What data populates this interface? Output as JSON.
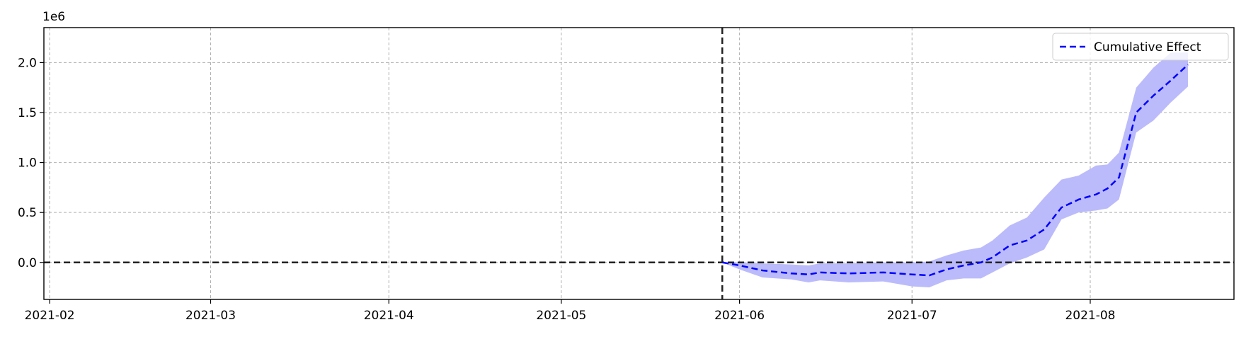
{
  "chart_data": {
    "type": "line",
    "title": "",
    "xlabel": "",
    "ylabel": "",
    "y_offset_label": "1e6",
    "x_axis_type": "date",
    "xlim": [
      "2021-01-31",
      "2021-08-26"
    ],
    "ylim": [
      -0.37,
      2.35
    ],
    "grid": true,
    "legend_position": "top-right",
    "x_ticks": [
      "2021-02-01",
      "2021-03-01",
      "2021-04-01",
      "2021-05-01",
      "2021-06-01",
      "2021-07-01",
      "2021-08-01"
    ],
    "x_tick_labels": [
      "2021-02",
      "2021-03",
      "2021-04",
      "2021-05",
      "2021-06",
      "2021-07",
      "2021-08"
    ],
    "y_ticks": [
      0.0,
      0.5,
      1.0,
      1.5,
      2.0
    ],
    "y_tick_labels": [
      "0.0",
      "0.5",
      "1.0",
      "1.5",
      "2.0"
    ],
    "reference_lines": {
      "intervention_date": "2021-05-29",
      "zero_level": 0.0
    },
    "series": [
      {
        "name": "Cumulative Effect",
        "color": "#0000ff",
        "style": "dashed",
        "x": [
          "2021-05-29",
          "2021-06-01",
          "2021-06-05",
          "2021-06-10",
          "2021-06-13",
          "2021-06-15",
          "2021-06-20",
          "2021-06-26",
          "2021-07-01",
          "2021-07-04",
          "2021-07-07",
          "2021-07-10",
          "2021-07-13",
          "2021-07-15",
          "2021-07-18",
          "2021-07-21",
          "2021-07-24",
          "2021-07-27",
          "2021-07-30",
          "2021-08-02",
          "2021-08-04",
          "2021-08-06",
          "2021-08-09",
          "2021-08-12",
          "2021-08-15",
          "2021-08-18"
        ],
        "y": [
          0.0,
          -0.03,
          -0.08,
          -0.11,
          -0.12,
          -0.1,
          -0.11,
          -0.1,
          -0.12,
          -0.13,
          -0.07,
          -0.03,
          0.0,
          0.05,
          0.17,
          0.22,
          0.33,
          0.55,
          0.63,
          0.68,
          0.74,
          0.85,
          1.5,
          1.67,
          1.82,
          1.98
        ]
      }
    ],
    "confidence_band": {
      "color": "#bbbbfb",
      "x": [
        "2021-05-29",
        "2021-06-01",
        "2021-06-05",
        "2021-06-10",
        "2021-06-13",
        "2021-06-15",
        "2021-06-20",
        "2021-06-26",
        "2021-07-01",
        "2021-07-04",
        "2021-07-07",
        "2021-07-10",
        "2021-07-13",
        "2021-07-15",
        "2021-07-18",
        "2021-07-21",
        "2021-07-24",
        "2021-07-27",
        "2021-07-30",
        "2021-08-02",
        "2021-08-04",
        "2021-08-06",
        "2021-08-09",
        "2021-08-12",
        "2021-08-15",
        "2021-08-18"
      ],
      "upper": [
        0.0,
        0.0,
        -0.01,
        -0.02,
        -0.03,
        -0.01,
        -0.01,
        0.0,
        0.0,
        0.01,
        0.07,
        0.12,
        0.15,
        0.22,
        0.37,
        0.45,
        0.65,
        0.83,
        0.87,
        0.97,
        0.98,
        1.1,
        1.75,
        1.95,
        2.1,
        2.1
      ],
      "lower": [
        0.0,
        -0.07,
        -0.15,
        -0.17,
        -0.2,
        -0.18,
        -0.2,
        -0.19,
        -0.24,
        -0.25,
        -0.18,
        -0.16,
        -0.16,
        -0.1,
        -0.01,
        0.05,
        0.13,
        0.43,
        0.5,
        0.52,
        0.54,
        0.63,
        1.3,
        1.42,
        1.6,
        1.76
      ]
    }
  }
}
